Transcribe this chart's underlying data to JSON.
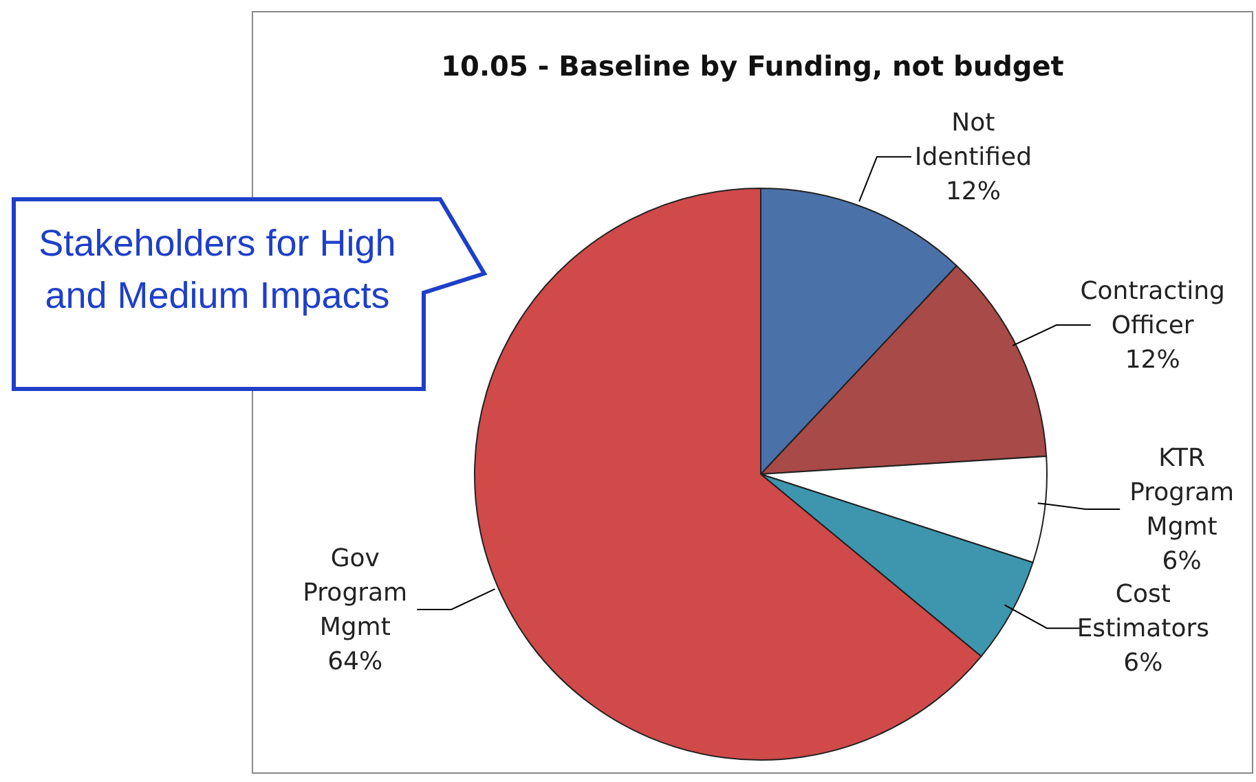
{
  "chart_data": {
    "type": "pie",
    "title": "10.05 - Baseline by Funding, not budget",
    "categories": [
      "Not Identified",
      "Contracting Officer",
      "KTR Program Mgmt",
      "Cost Estimators",
      "Gov Program Mgmt"
    ],
    "values": [
      12,
      12,
      6,
      6,
      64
    ],
    "value_labels": [
      "12%",
      "12%",
      "6%",
      "6%",
      "64%"
    ],
    "colors": [
      "#4a72a8",
      "#a84a47",
      "#ffffff",
      "#3d96ae",
      "#d04a4a"
    ],
    "annotations": [
      "Stakeholders for High and Medium Impacts"
    ]
  }
}
